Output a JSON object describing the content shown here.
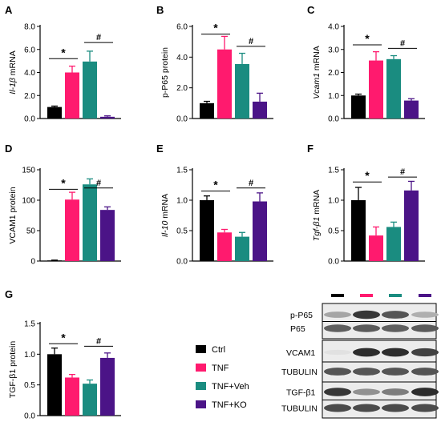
{
  "colors": {
    "ctrl": "#000000",
    "tnf": "#ff1a6e",
    "veh": "#1a8c80",
    "ko": "#4b1487"
  },
  "chart_data": [
    {
      "panel": "A",
      "type": "bar",
      "ylabel": "Il-1β mRNA",
      "yticks": [
        "0.0",
        "2.0",
        "4.0",
        "6.0",
        "8.0"
      ],
      "ylim": [
        0,
        8
      ],
      "values": [
        1.0,
        4.0,
        4.95,
        0.15
      ],
      "errors": [
        0.08,
        0.55,
        0.9,
        0.08
      ],
      "sig": [
        {
          "mark": "*",
          "from": 0,
          "to": 1,
          "y": 5.2
        },
        {
          "mark": "#",
          "from": 2,
          "to": 3,
          "y": 6.6
        }
      ]
    },
    {
      "panel": "B",
      "type": "bar",
      "ylabel": "p-P65 protein",
      "yticks": [
        "0.0",
        "2.0",
        "4.0",
        "6.0"
      ],
      "ylim": [
        0,
        6
      ],
      "values": [
        1.0,
        4.5,
        3.55,
        1.1
      ],
      "errors": [
        0.12,
        0.85,
        0.7,
        0.55
      ],
      "sig": [
        {
          "mark": "*",
          "from": 0,
          "to": 1,
          "y": 5.5
        },
        {
          "mark": "#",
          "from": 2,
          "to": 3,
          "y": 4.7
        }
      ]
    },
    {
      "panel": "C",
      "type": "bar",
      "ylabel": "Vcam1 mRNA",
      "yticks": [
        "0.0",
        "1.0",
        "2.0",
        "3.0",
        "4.0"
      ],
      "ylim": [
        0,
        4
      ],
      "values": [
        1.0,
        2.52,
        2.58,
        0.78
      ],
      "errors": [
        0.06,
        0.38,
        0.15,
        0.08
      ],
      "sig": [
        {
          "mark": "*",
          "from": 0,
          "to": 1,
          "y": 3.2
        },
        {
          "mark": "#",
          "from": 2,
          "to": 3,
          "y": 3.05
        }
      ]
    },
    {
      "panel": "D",
      "type": "bar",
      "ylabel": "VCAM1 protein",
      "yticks": [
        "0",
        "50",
        "100",
        "150"
      ],
      "ylim": [
        0,
        150
      ],
      "values": [
        1,
        101,
        126,
        84
      ],
      "errors": [
        0.5,
        12,
        9,
        5
      ],
      "sig": [
        {
          "mark": "*",
          "from": 0,
          "to": 1,
          "y": 118
        },
        {
          "mark": "#",
          "from": 2,
          "to": 3,
          "y": 120
        }
      ]
    },
    {
      "panel": "E",
      "type": "bar",
      "ylabel": "Il-10 mRNA",
      "yticks": [
        "0.0",
        "0.5",
        "1.0",
        "1.5"
      ],
      "ylim": [
        0,
        1.5
      ],
      "values": [
        1.0,
        0.47,
        0.4,
        0.98
      ],
      "errors": [
        0.07,
        0.05,
        0.07,
        0.14
      ],
      "sig": [
        {
          "mark": "*",
          "from": 0,
          "to": 1,
          "y": 1.15
        },
        {
          "mark": "#",
          "from": 2,
          "to": 3,
          "y": 1.2
        }
      ]
    },
    {
      "panel": "F",
      "type": "bar",
      "ylabel": "Tgf-β1 mRNA",
      "yticks": [
        "0.0",
        "0.5",
        "1.0",
        "1.5"
      ],
      "ylim": [
        0,
        1.5
      ],
      "values": [
        1.0,
        0.42,
        0.56,
        1.16
      ],
      "errors": [
        0.21,
        0.14,
        0.08,
        0.15
      ],
      "sig": [
        {
          "mark": "*",
          "from": 0,
          "to": 1,
          "y": 1.3
        },
        {
          "mark": "#",
          "from": 2,
          "to": 3,
          "y": 1.38
        }
      ]
    },
    {
      "panel": "G",
      "type": "bar",
      "ylabel": "TGF-β1 protein",
      "yticks": [
        "0.0",
        "0.5",
        "1.0",
        "1.5"
      ],
      "ylim": [
        0,
        1.5
      ],
      "values": [
        1.0,
        0.62,
        0.52,
        0.94
      ],
      "errors": [
        0.1,
        0.05,
        0.06,
        0.08
      ],
      "sig": [
        {
          "mark": "*",
          "from": 0,
          "to": 1,
          "y": 1.17
        },
        {
          "mark": "#",
          "from": 2,
          "to": 3,
          "y": 1.13
        }
      ]
    }
  ],
  "legend": [
    {
      "label": "Ctrl",
      "color": "#000000"
    },
    {
      "label": "TNF",
      "color": "#ff1a6e"
    },
    {
      "label": "TNF+Veh",
      "color": "#1a8c80"
    },
    {
      "label": "TNF+KO",
      "color": "#4b1487"
    }
  ],
  "blot": {
    "header_colors": [
      "#000000",
      "#ff1a6e",
      "#1a8c80",
      "#4b1487"
    ],
    "rows": [
      {
        "label": "p-P65",
        "intensity": [
          0.35,
          0.9,
          0.75,
          0.3
        ],
        "box": 0
      },
      {
        "label": "P65",
        "intensity": [
          0.7,
          0.72,
          0.7,
          0.72
        ],
        "box": 0
      },
      {
        "label": "VCAM1",
        "intensity": [
          0.05,
          0.95,
          0.95,
          0.85
        ],
        "box": 1
      },
      {
        "label": "TUBULIN",
        "intensity": [
          0.75,
          0.75,
          0.75,
          0.75
        ],
        "box": 1
      },
      {
        "label": "TGF-β1",
        "intensity": [
          0.9,
          0.45,
          0.55,
          0.95
        ],
        "box": 2
      },
      {
        "label": "TUBULIN",
        "intensity": [
          0.8,
          0.8,
          0.8,
          0.8
        ],
        "box": 2
      }
    ]
  }
}
